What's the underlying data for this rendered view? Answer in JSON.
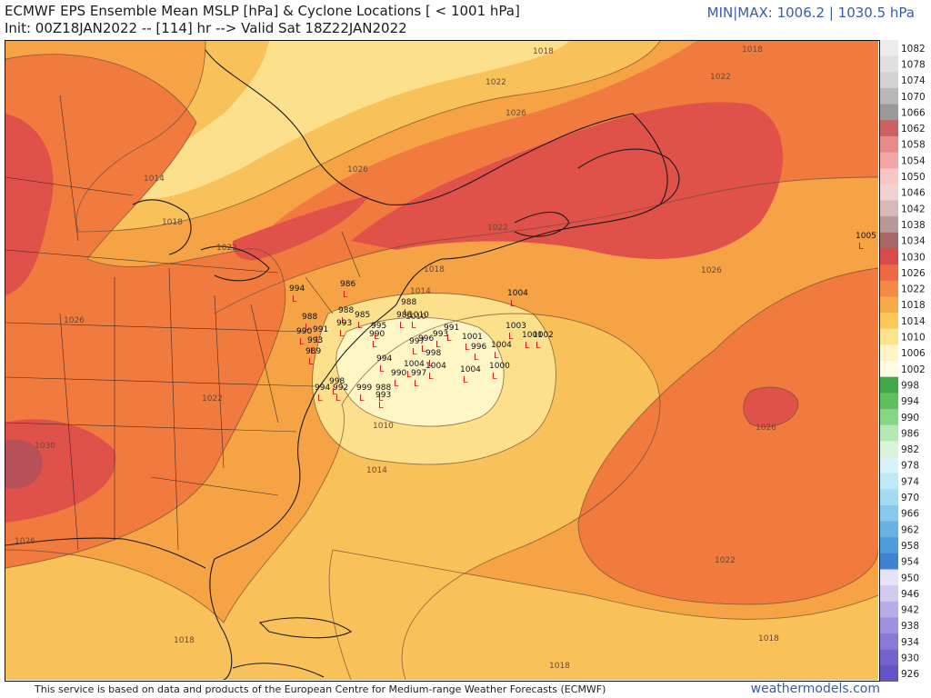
{
  "header": {
    "title": "ECMWF EPS Ensemble Mean MSLP [hPa] & Cyclone Locations [ < 1001 hPa]",
    "subtitle": "Init: 00Z18JAN2022 -- [114] hr --> Valid Sat 18Z22JAN2022",
    "minmax": "MIN|MAX: 1006.2 | 1030.5 hPa"
  },
  "footer": {
    "credit": "This service is based on data and products of the European Centre for Medium-range Weather Forecasts (ECMWF)",
    "site": "weathermodels.com"
  },
  "colors": {
    "c1010": "#fff6c6",
    "c1014": "#fde08b",
    "c1018": "#f9c15a",
    "c1022": "#f5a345",
    "c1026": "#f17a3f",
    "c1030": "#e0514a",
    "c1034": "#b8505a",
    "marker": "#cc1a1a",
    "coast": "#1a1a1a"
  },
  "legend": {
    "levels": [
      {
        "label": "1082",
        "color": "#ececec"
      },
      {
        "label": "1078",
        "color": "#e0e0e0"
      },
      {
        "label": "1074",
        "color": "#d2d2d2"
      },
      {
        "label": "1070",
        "color": "#b8b8b8"
      },
      {
        "label": "1066",
        "color": "#9a9a9a"
      },
      {
        "label": "1062",
        "color": "#cd6060"
      },
      {
        "label": "1058",
        "color": "#e88a8a"
      },
      {
        "label": "1054",
        "color": "#f2a5a5"
      },
      {
        "label": "1050",
        "color": "#f7c6c6"
      },
      {
        "label": "1046",
        "color": "#f0d2d2"
      },
      {
        "label": "1042",
        "color": "#d8b8b8"
      },
      {
        "label": "1038",
        "color": "#b89898"
      },
      {
        "label": "1034",
        "color": "#a86666"
      },
      {
        "label": "1030",
        "color": "#d94a4a"
      },
      {
        "label": "1026",
        "color": "#ee6a45"
      },
      {
        "label": "1022",
        "color": "#f48a45"
      },
      {
        "label": "1018",
        "color": "#f7aa4a"
      },
      {
        "label": "1014",
        "color": "#fbca58"
      },
      {
        "label": "1010",
        "color": "#fde48e"
      },
      {
        "label": "1006",
        "color": "#fff4c8"
      },
      {
        "label": "1002",
        "color": "#fffbe6"
      },
      {
        "label": "998",
        "color": "#3ea84a"
      },
      {
        "label": "994",
        "color": "#5fbf5f"
      },
      {
        "label": "990",
        "color": "#86d686"
      },
      {
        "label": "986",
        "color": "#b5e8b5"
      },
      {
        "label": "982",
        "color": "#daf3da"
      },
      {
        "label": "978",
        "color": "#d8f2fb"
      },
      {
        "label": "974",
        "color": "#bfe9f7"
      },
      {
        "label": "970",
        "color": "#a4dbf2"
      },
      {
        "label": "966",
        "color": "#86c9ec"
      },
      {
        "label": "962",
        "color": "#68b3e4"
      },
      {
        "label": "958",
        "color": "#4f9cdc"
      },
      {
        "label": "954",
        "color": "#3f82d2"
      },
      {
        "label": "950",
        "color": "#e7e3f6"
      },
      {
        "label": "946",
        "color": "#d2cbf0"
      },
      {
        "label": "942",
        "color": "#b8ade8"
      },
      {
        "label": "938",
        "color": "#9f90df"
      },
      {
        "label": "934",
        "color": "#8a78d6"
      },
      {
        "label": "930",
        "color": "#7662cd"
      },
      {
        "label": "926",
        "color": "#6552c4"
      }
    ]
  },
  "map": {
    "isobar_labels": [
      {
        "text": "1018",
        "id": "l1"
      },
      {
        "text": "1022",
        "id": "l2"
      },
      {
        "text": "1026",
        "id": "l3"
      },
      {
        "text": "1022",
        "id": "l4"
      },
      {
        "text": "1014",
        "id": "l5"
      },
      {
        "text": "1018",
        "id": "l6"
      },
      {
        "text": "1026",
        "id": "l7"
      },
      {
        "text": "1022",
        "id": "l8"
      },
      {
        "text": "1018",
        "id": "l9"
      },
      {
        "text": "1026",
        "id": "l10"
      },
      {
        "text": "1014",
        "id": "l11"
      },
      {
        "text": "1010",
        "id": "l12"
      },
      {
        "text": "1010",
        "id": "l13"
      },
      {
        "text": "1014",
        "id": "l14"
      },
      {
        "text": "1022",
        "id": "l15"
      },
      {
        "text": "1030",
        "id": "l16"
      },
      {
        "text": "1026",
        "id": "l17"
      },
      {
        "text": "1018",
        "id": "l18"
      },
      {
        "text": "1018",
        "id": "l19"
      },
      {
        "text": "1022",
        "id": "l20"
      },
      {
        "text": "1026",
        "id": "l21"
      },
      {
        "text": "1026",
        "id": "l22"
      },
      {
        "text": "1022",
        "id": "l23"
      },
      {
        "text": "1018",
        "id": "l24"
      },
      {
        "text": "1018",
        "id": "l25"
      }
    ],
    "cyclones": [
      {
        "v": "1005"
      },
      {
        "v": "994"
      },
      {
        "v": "986"
      },
      {
        "v": "988"
      },
      {
        "v": "988"
      },
      {
        "v": "985"
      },
      {
        "v": "988"
      },
      {
        "v": "1010"
      },
      {
        "v": "1004"
      },
      {
        "v": "993"
      },
      {
        "v": "995"
      },
      {
        "v": "990"
      },
      {
        "v": "993"
      },
      {
        "v": "991"
      },
      {
        "v": "996"
      },
      {
        "v": "1003"
      },
      {
        "v": "1001"
      },
      {
        "v": "1002"
      },
      {
        "v": "1001"
      },
      {
        "v": "996"
      },
      {
        "v": "1004"
      },
      {
        "v": "998"
      },
      {
        "v": "997"
      },
      {
        "v": "994"
      },
      {
        "v": "1004"
      },
      {
        "v": "1004"
      },
      {
        "v": "990"
      },
      {
        "v": "997"
      },
      {
        "v": "1004"
      },
      {
        "v": "1000"
      },
      {
        "v": "998"
      },
      {
        "v": "994"
      },
      {
        "v": "992"
      },
      {
        "v": "999"
      },
      {
        "v": "988"
      },
      {
        "v": "993"
      },
      {
        "v": "988"
      },
      {
        "v": "991"
      },
      {
        "v": "993"
      },
      {
        "v": "990"
      },
      {
        "v": "989"
      }
    ]
  }
}
